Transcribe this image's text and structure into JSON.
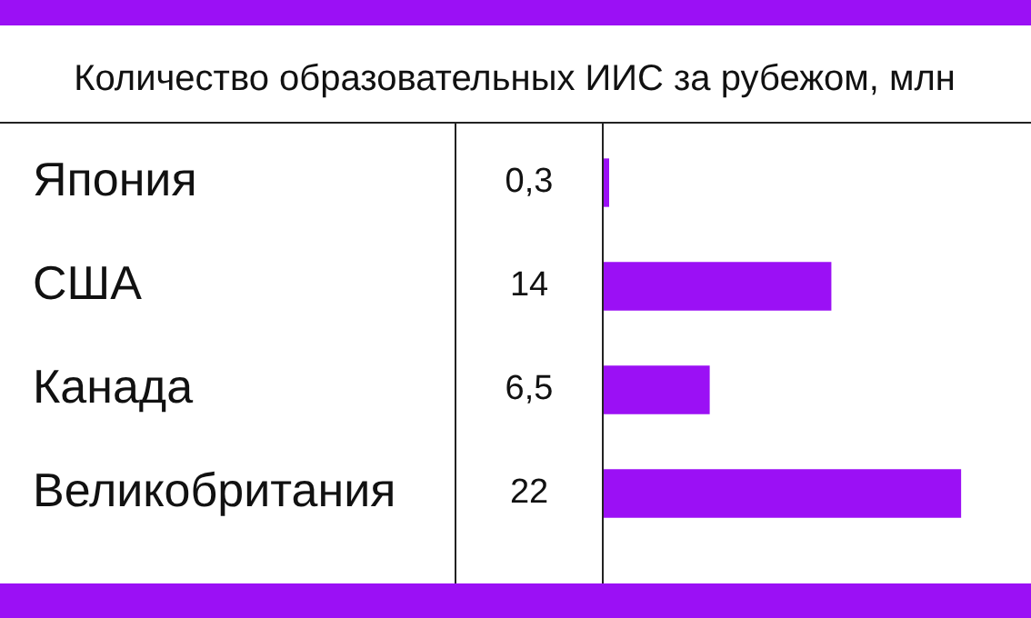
{
  "chart_data": {
    "type": "bar",
    "orientation": "horizontal",
    "title": "Количество образовательных ИИС за рубежом, млн",
    "categories": [
      "Япония",
      "США",
      "Канада",
      "Великобритания"
    ],
    "values": [
      0.3,
      14,
      6.5,
      22
    ],
    "value_labels": [
      "0,3",
      "14",
      "6,5",
      "22"
    ],
    "color": "#9b10f5",
    "legend": false
  }
}
